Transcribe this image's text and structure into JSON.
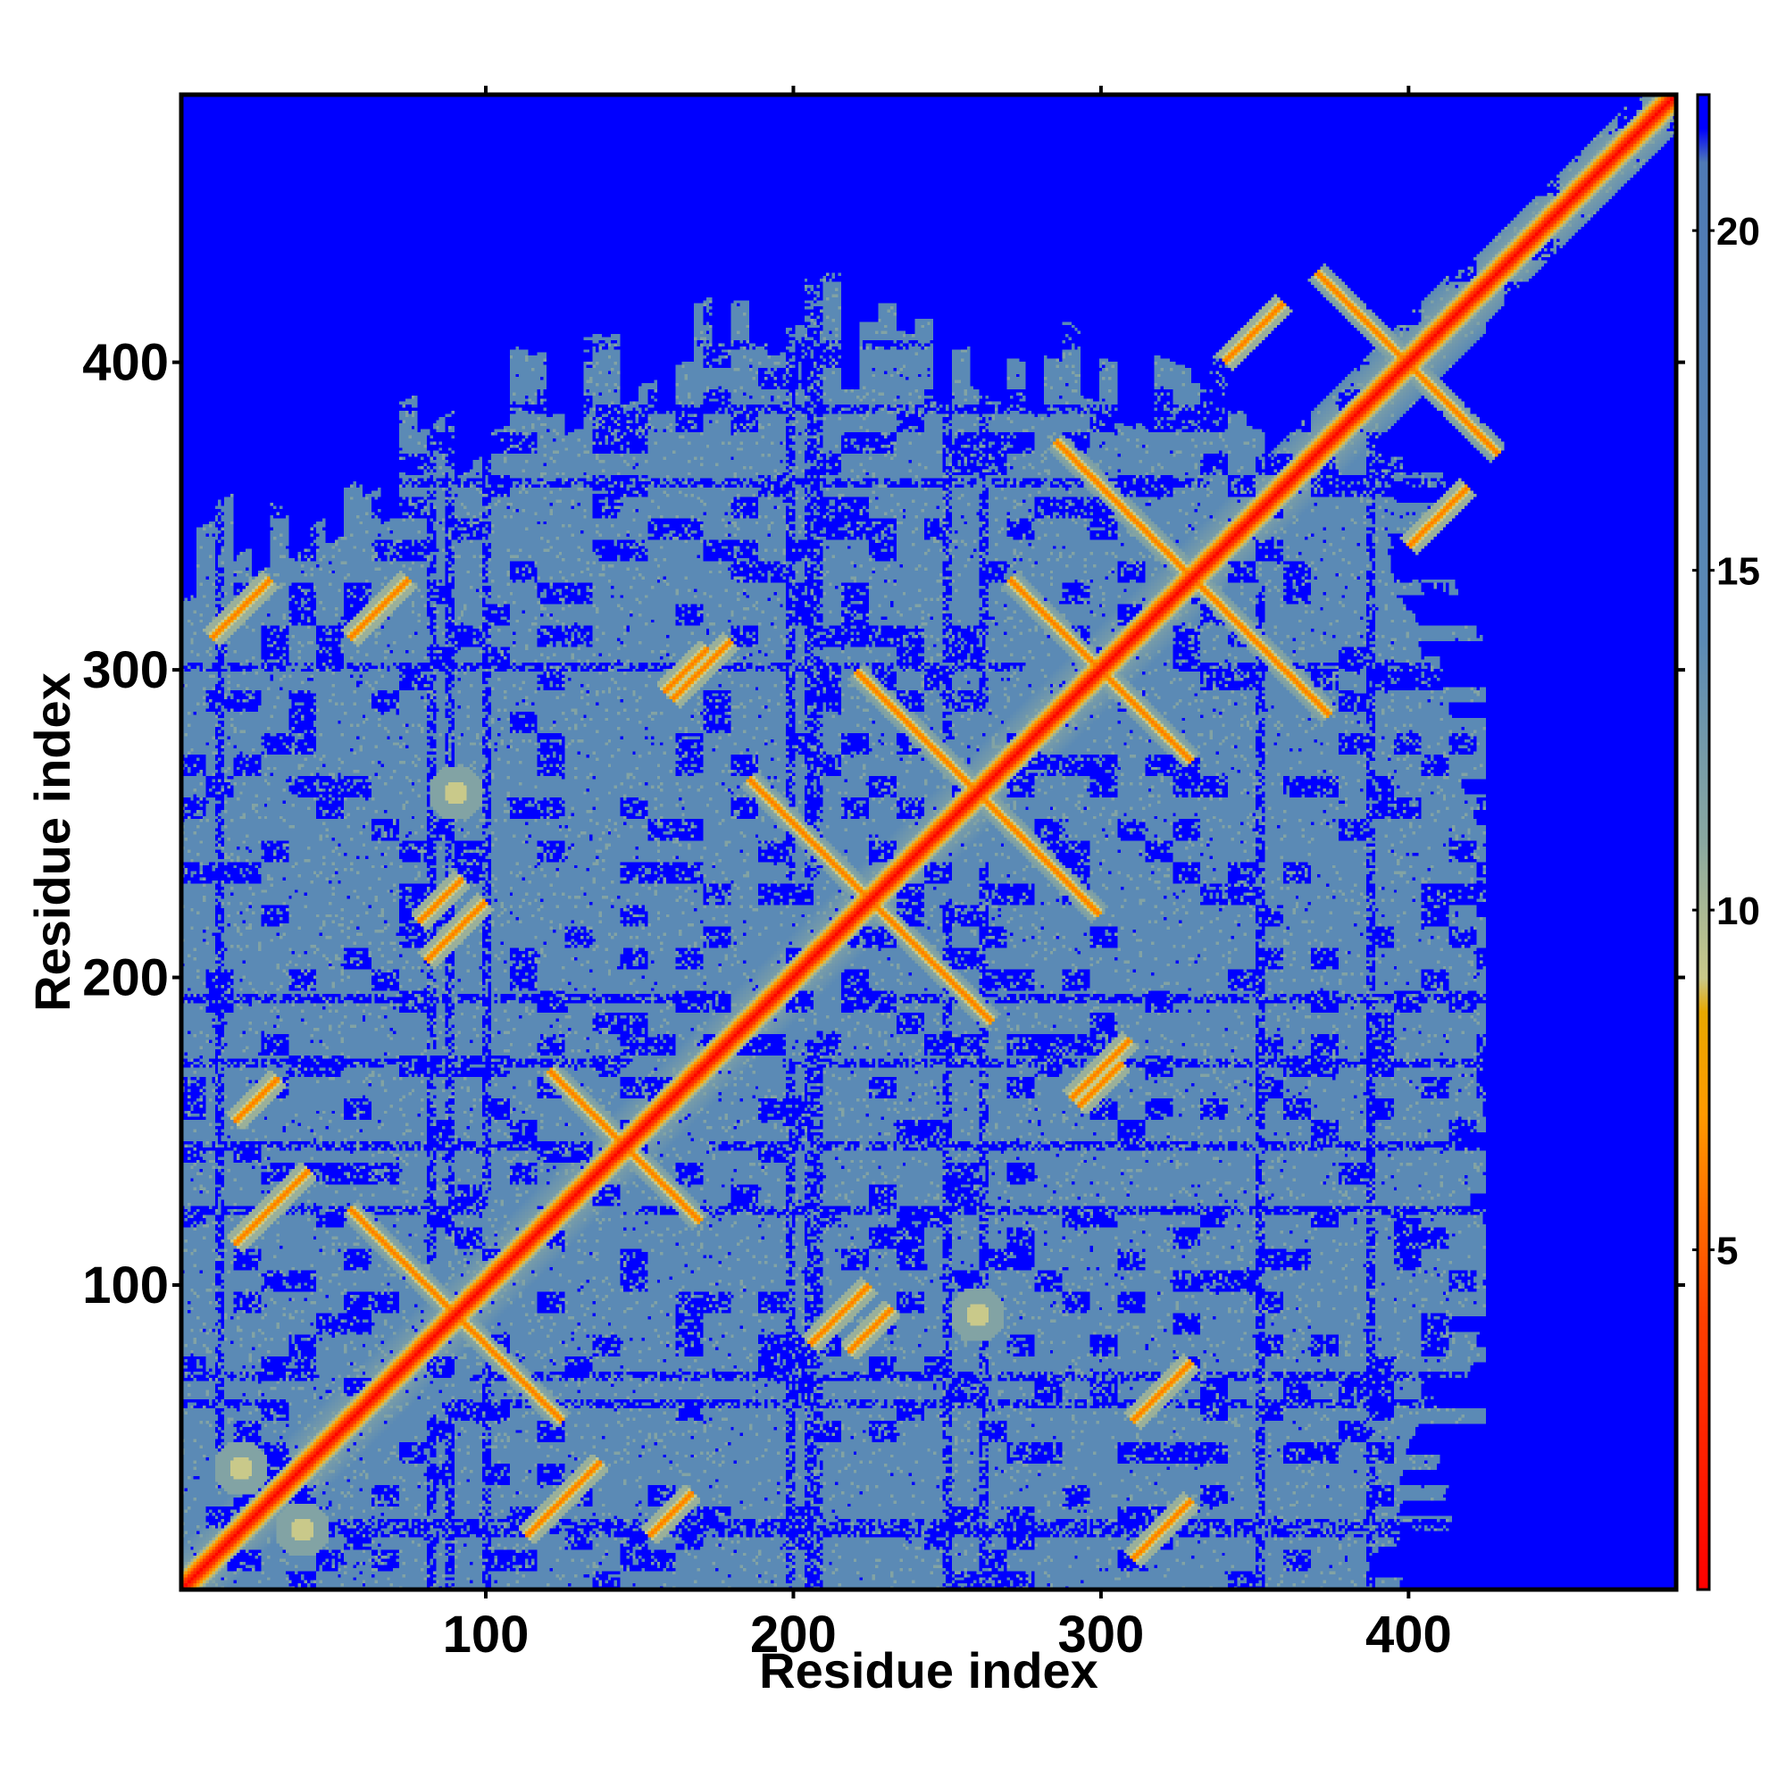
{
  "chart_data": {
    "type": "heatmap",
    "title": "",
    "xlabel": "Residue index",
    "ylabel": "Residue index",
    "n_residues": 487,
    "xlim": [
      1,
      487
    ],
    "ylim": [
      1,
      487
    ],
    "x_ticks": [
      100,
      200,
      300,
      400
    ],
    "y_ticks": [
      100,
      200,
      300,
      400
    ],
    "x_tick_labels": [
      "100",
      "200",
      "300",
      "400"
    ],
    "y_tick_labels": [
      "100",
      "200",
      "300",
      "400"
    ],
    "colorbar": {
      "range": [
        0,
        22
      ],
      "ticks": [
        5,
        10,
        15,
        20
      ],
      "tick_labels": [
        "5",
        "10",
        "15",
        "20"
      ],
      "stops": [
        {
          "value": 0,
          "color": "#ff0000"
        },
        {
          "value": 4,
          "color": "#ff4000"
        },
        {
          "value": 7,
          "color": "#ff9a00"
        },
        {
          "value": 8.5,
          "color": "#e8a800"
        },
        {
          "value": 9,
          "color": "#c9c98a"
        },
        {
          "value": 11,
          "color": "#8aa8a0"
        },
        {
          "value": 14,
          "color": "#5b8ab5"
        },
        {
          "value": 21,
          "color": "#4f7ab5"
        },
        {
          "value": 21.5,
          "color": "#0000ff"
        },
        {
          "value": 22,
          "color": "#0000ff"
        }
      ]
    },
    "colors": {
      "far": "#0000ff",
      "mid": "#5b88b8",
      "near": "#ff0000"
    },
    "contact_features": [
      {
        "i": 1,
        "j": 487,
        "type": "diagonal"
      },
      {
        "i": 90,
        "j": 90,
        "type": "antiparallel",
        "len": 35
      },
      {
        "i": 145,
        "j": 145,
        "type": "antiparallel",
        "len": 25
      },
      {
        "i": 225,
        "j": 225,
        "type": "antiparallel",
        "len": 40
      },
      {
        "i": 300,
        "j": 300,
        "type": "antiparallel",
        "len": 30
      },
      {
        "i": 330,
        "j": 330,
        "type": "antiparallel",
        "len": 45
      },
      {
        "i": 260,
        "j": 260,
        "type": "antiparallel",
        "len": 40
      },
      {
        "i": 400,
        "j": 400,
        "type": "antiparallel",
        "len": 30
      },
      {
        "i": 90,
        "j": 215,
        "type": "parallel",
        "len": 20
      },
      {
        "i": 30,
        "j": 125,
        "type": "parallel",
        "len": 25
      },
      {
        "i": 65,
        "j": 320,
        "type": "parallel",
        "len": 20
      },
      {
        "i": 170,
        "j": 300,
        "type": "parallel",
        "len": 20
      },
      {
        "i": 25,
        "j": 160,
        "type": "parallel",
        "len": 15
      },
      {
        "i": 300,
        "j": 165,
        "type": "parallel",
        "len": 15
      },
      {
        "i": 225,
        "j": 85,
        "type": "parallel",
        "len": 15
      },
      {
        "i": 350,
        "j": 410,
        "type": "parallel",
        "len": 20
      },
      {
        "i": 260,
        "j": 90,
        "type": "blob",
        "len": 10
      },
      {
        "i": 40,
        "j": 20,
        "type": "blob",
        "len": 15
      },
      {
        "i": 320,
        "j": 20,
        "type": "parallel",
        "len": 20
      }
    ]
  }
}
